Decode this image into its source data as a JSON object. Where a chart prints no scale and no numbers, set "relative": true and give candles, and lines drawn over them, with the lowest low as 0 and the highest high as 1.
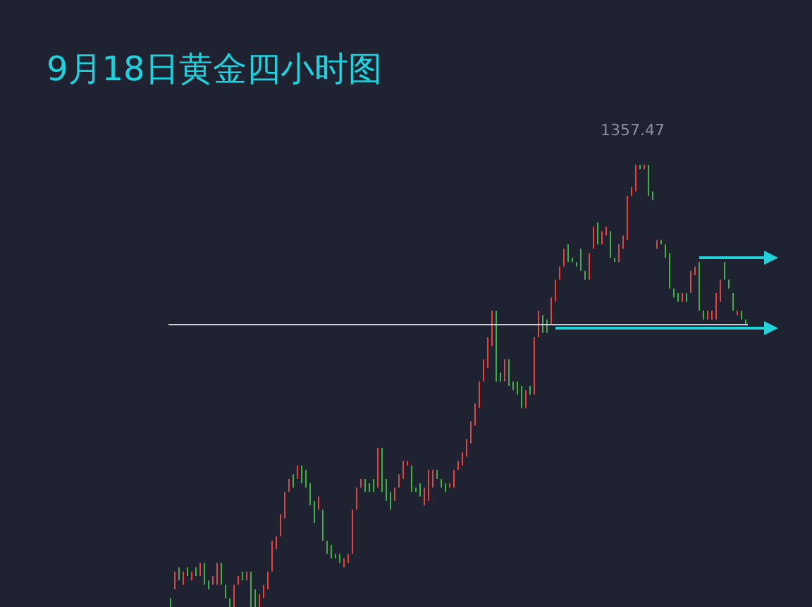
{
  "chart_data": {
    "type": "candlestick",
    "title": "9月18日黄金四小时图",
    "relative": true,
    "tick_labels": false,
    "annotations": [
      {
        "text": "1357.47",
        "y": 1
      }
    ],
    "ref_lines": [
      {
        "axis": "y",
        "value": 0.64,
        "label": null,
        "color": "#c8d0d8",
        "line_style": "solid"
      }
    ],
    "categories": [
      null,
      null,
      null,
      null,
      null,
      null,
      null,
      null,
      null,
      null,
      null,
      null,
      null,
      null,
      null,
      null,
      null,
      null,
      null,
      null,
      null,
      null,
      null,
      null,
      null,
      null,
      null,
      null,
      null,
      null,
      null,
      null,
      null,
      null,
      null,
      null,
      null,
      null,
      null,
      null,
      null,
      null,
      null,
      null,
      null,
      null,
      null,
      null,
      null,
      null,
      null,
      null,
      null,
      null,
      null,
      null,
      null,
      null,
      null,
      null,
      null,
      null,
      null,
      null,
      null,
      null,
      null,
      null,
      null,
      null,
      null,
      null,
      null,
      null,
      null,
      null,
      null,
      null,
      null,
      null,
      null,
      null,
      null,
      null,
      null,
      null,
      null,
      null,
      null,
      null,
      null,
      null,
      null,
      null,
      null,
      null,
      null,
      null,
      null,
      null,
      null,
      null,
      null,
      null,
      null,
      null,
      null,
      null,
      null,
      null,
      null,
      null,
      null,
      null,
      null,
      null,
      null,
      null,
      null,
      null,
      null,
      null,
      null,
      null,
      null,
      null,
      null,
      null,
      null,
      null,
      null,
      null,
      null,
      null,
      null,
      null,
      null
    ],
    "ohlc": [
      [
        0.02,
        0.02,
        0,
        0
      ],
      [
        0.04,
        0.08,
        0.04,
        0.08
      ],
      [
        0.09,
        0.09,
        0.06,
        0.06
      ],
      [
        0.05,
        0.08,
        0.05,
        0.08
      ],
      [
        0.09,
        0.09,
        0.07,
        0.07
      ],
      [
        0.06,
        0.08,
        0.06,
        0.08
      ],
      [
        0.09,
        0.09,
        0.07,
        0.07
      ],
      [
        0.07,
        0.1,
        0.07,
        0.1
      ],
      [
        0.1,
        0.1,
        0.05,
        0.05
      ],
      [
        0.06,
        0.06,
        0.04,
        0.04
      ],
      [
        0.05,
        0.07,
        0.05,
        0.07
      ],
      [
        0.05,
        0.1,
        0.05,
        0.1
      ],
      [
        0.1,
        0.1,
        0.05,
        0.05
      ],
      [
        0.05,
        0.05,
        0.02,
        0.02
      ],
      [
        0.02,
        0.02,
        0,
        0
      ],
      [
        0,
        0.05,
        0,
        0.05
      ],
      [
        0.05,
        0.07,
        0.05,
        0.07
      ],
      [
        0.08,
        0.08,
        0.06,
        0.06
      ],
      [
        0.06,
        0.08,
        0.06,
        0.08
      ],
      [
        0.08,
        0.08,
        0,
        0
      ],
      [
        0.04,
        0.04,
        0,
        0
      ],
      [
        0,
        0.03,
        0,
        0.03
      ],
      [
        0.02,
        0.05,
        0.02,
        0.05
      ],
      [
        0.04,
        0.08,
        0.04,
        0.08
      ],
      [
        0.08,
        0.15,
        0.08,
        0.15
      ],
      [
        0.13,
        0.16,
        0.13,
        0.16
      ],
      [
        0.16,
        0.21,
        0.16,
        0.21
      ],
      [
        0.2,
        0.26,
        0.2,
        0.26
      ],
      [
        0.26,
        0.29,
        0.26,
        0.29
      ],
      [
        0.3,
        0.3,
        0.27,
        0.27
      ],
      [
        0.29,
        0.32,
        0.29,
        0.32
      ],
      [
        0.32,
        0.32,
        0.28,
        0.28
      ],
      [
        0.31,
        0.31,
        0.27,
        0.27
      ],
      [
        0.28,
        0.28,
        0.23,
        0.23
      ],
      [
        0.24,
        0.24,
        0.19,
        0.19
      ],
      [
        0.22,
        0.25,
        0.22,
        0.25
      ],
      [
        0.22,
        0.22,
        0.15,
        0.15
      ],
      [
        0.15,
        0.15,
        0.12,
        0.12
      ],
      [
        0.14,
        0.14,
        0.11,
        0.11
      ],
      [
        0.12,
        0.12,
        0.11,
        0.11
      ],
      [
        0.12,
        0.12,
        0.1,
        0.1
      ],
      [
        0.09,
        0.11,
        0.09,
        0.11
      ],
      [
        0.1,
        0.12,
        0.1,
        0.12
      ],
      [
        0.12,
        0.22,
        0.12,
        0.22
      ],
      [
        0.22,
        0.27,
        0.22,
        0.27
      ],
      [
        0.27,
        0.29,
        0.27,
        0.29
      ],
      [
        0.29,
        0.29,
        0.26,
        0.26
      ],
      [
        0.28,
        0.28,
        0.26,
        0.26
      ],
      [
        0.29,
        0.29,
        0.26,
        0.26
      ],
      [
        0.27,
        0.36,
        0.27,
        0.36
      ],
      [
        0.36,
        0.36,
        0.26,
        0.26
      ],
      [
        0.29,
        0.29,
        0.24,
        0.24
      ],
      [
        0.26,
        0.26,
        0.22,
        0.22
      ],
      [
        0.24,
        0.27,
        0.24,
        0.27
      ],
      [
        0.27,
        0.3,
        0.27,
        0.3
      ],
      [
        0.29,
        0.33,
        0.29,
        0.33
      ],
      [
        0.32,
        0.33,
        0.32,
        0.33
      ],
      [
        0.32,
        0.32,
        0.26,
        0.26
      ],
      [
        0.27,
        0.27,
        0.26,
        0.26
      ],
      [
        0.28,
        0.28,
        0.25,
        0.25
      ],
      [
        0.23,
        0.27,
        0.23,
        0.27
      ],
      [
        0.24,
        0.31,
        0.24,
        0.31
      ],
      [
        0.27,
        0.31,
        0.27,
        0.31
      ],
      [
        0.31,
        0.31,
        0.29,
        0.29
      ],
      [
        0.29,
        0.29,
        0.27,
        0.27
      ],
      [
        0.28,
        0.28,
        0.26,
        0.26
      ],
      [
        0.27,
        0.28,
        0.27,
        0.28
      ],
      [
        0.27,
        0.31,
        0.27,
        0.31
      ],
      [
        0.31,
        0.33,
        0.31,
        0.33
      ],
      [
        0.32,
        0.35,
        0.32,
        0.35
      ],
      [
        0.34,
        0.38,
        0.34,
        0.38
      ],
      [
        0.37,
        0.42,
        0.37,
        0.42
      ],
      [
        0.41,
        0.46,
        0.41,
        0.46
      ],
      [
        0.45,
        0.51,
        0.45,
        0.51
      ],
      [
        0.51,
        0.56,
        0.51,
        0.56
      ],
      [
        0.54,
        0.61,
        0.54,
        0.61
      ],
      [
        0.59,
        0.67,
        0.59,
        0.67
      ],
      [
        0.67,
        0.67,
        0.51,
        0.51
      ],
      [
        0.53,
        0.53,
        0.51,
        0.51
      ],
      [
        0.51,
        0.56,
        0.51,
        0.56
      ],
      [
        0.56,
        0.56,
        0.5,
        0.5
      ],
      [
        0.51,
        0.51,
        0.49,
        0.49
      ],
      [
        0.51,
        0.51,
        0.48,
        0.48
      ],
      [
        0.5,
        0.5,
        0.45,
        0.45
      ],
      [
        0.45,
        0.49,
        0.45,
        0.49
      ],
      [
        0.5,
        0.5,
        0.48,
        0.48
      ],
      [
        0.48,
        0.61,
        0.48,
        0.61
      ],
      [
        0.61,
        0.67,
        0.61,
        0.67
      ],
      [
        0.66,
        0.66,
        0.62,
        0.62
      ],
      [
        0.65,
        0.65,
        0.62,
        0.62
      ],
      [
        0.64,
        0.7,
        0.64,
        0.7
      ],
      [
        0.69,
        0.74,
        0.69,
        0.74
      ],
      [
        0.74,
        0.77,
        0.74,
        0.77
      ],
      [
        0.77,
        0.81,
        0.77,
        0.81
      ],
      [
        0.82,
        0.82,
        0.78,
        0.78
      ],
      [
        0.79,
        0.79,
        0.78,
        0.78
      ],
      [
        0.78,
        0.78,
        0.77,
        0.77
      ],
      [
        0.81,
        0.81,
        0.76,
        0.76
      ],
      [
        0.76,
        0.76,
        0.74,
        0.74
      ],
      [
        0.74,
        0.8,
        0.74,
        0.8
      ],
      [
        0.81,
        0.86,
        0.81,
        0.86
      ],
      [
        0.87,
        0.87,
        0.82,
        0.82
      ],
      [
        0.82,
        0.85,
        0.82,
        0.85
      ],
      [
        0.84,
        0.86,
        0.84,
        0.86
      ],
      [
        0.85,
        0.85,
        0.79,
        0.79
      ],
      [
        0.79,
        0.79,
        0.78,
        0.78
      ],
      [
        0.78,
        0.82,
        0.78,
        0.82
      ],
      [
        0.81,
        0.84,
        0.81,
        0.84
      ],
      [
        0.83,
        0.93,
        0.83,
        0.93
      ],
      [
        0.93,
        0.95,
        0.93,
        0.95
      ],
      [
        0.94,
        1,
        0.94,
        1
      ],
      [
        1,
        1,
        0.99,
        0.99
      ],
      [
        0.99,
        1,
        0.99,
        1
      ],
      [
        1,
        1,
        0.93,
        0.93
      ],
      [
        0.94,
        0.94,
        0.92,
        0.92
      ],
      [
        0.81,
        0.83,
        0.81,
        0.83
      ],
      [
        0.83,
        0.83,
        0.82,
        0.82
      ],
      [
        0.82,
        0.82,
        0.79,
        0.79
      ],
      [
        0.8,
        0.8,
        0.72,
        0.72
      ],
      [
        0.72,
        0.72,
        0.7,
        0.7
      ],
      [
        0.71,
        0.71,
        0.69,
        0.69
      ],
      [
        0.69,
        0.71,
        0.69,
        0.71
      ],
      [
        0.71,
        0.71,
        0.69,
        0.69
      ],
      [
        0.71,
        0.76,
        0.71,
        0.76
      ],
      [
        0.75,
        0.77,
        0.75,
        0.77
      ],
      [
        0.78,
        0.78,
        0.67,
        0.67
      ],
      [
        0.67,
        0.67,
        0.65,
        0.65
      ],
      [
        0.65,
        0.67,
        0.65,
        0.67
      ],
      [
        0.65,
        0.67,
        0.65,
        0.67
      ],
      [
        0.65,
        0.71,
        0.65,
        0.71
      ],
      [
        0.69,
        0.74,
        0.69,
        0.74
      ],
      [
        0.78,
        0.78,
        0.74,
        0.74
      ],
      [
        0.74,
        0.74,
        0.72,
        0.72
      ],
      [
        0.71,
        0.71,
        0.67,
        0.67
      ],
      [
        0.66,
        0.67,
        0.66,
        0.67
      ],
      [
        0.67,
        0.67,
        0.65,
        0.65
      ],
      [
        0.65,
        0.65,
        0.64,
        0.64
      ]
    ],
    "colors": [
      "#3cb043",
      "#e8413f",
      "#3cb043",
      "#e8413f",
      "#3cb043",
      "#e8413f",
      "#3cb043",
      "#e8413f",
      "#3cb043",
      "#3cb043",
      "#e8413f",
      "#e8413f",
      "#3cb043",
      "#3cb043",
      "#3cb043",
      "#e8413f",
      "#e8413f",
      "#3cb043",
      "#e8413f",
      "#3cb043",
      "#3cb043",
      "#e8413f",
      "#e8413f",
      "#e8413f",
      "#e8413f",
      "#e8413f",
      "#e8413f",
      "#e8413f",
      "#e8413f",
      "#3cb043",
      "#e8413f",
      "#3cb043",
      "#3cb043",
      "#3cb043",
      "#3cb043",
      "#e8413f",
      "#3cb043",
      "#3cb043",
      "#3cb043",
      "#3cb043",
      "#3cb043",
      "#e8413f",
      "#e8413f",
      "#e8413f",
      "#e8413f",
      "#e8413f",
      "#3cb043",
      "#3cb043",
      "#3cb043",
      "#e8413f",
      "#3cb043",
      "#3cb043",
      "#3cb043",
      "#e8413f",
      "#e8413f",
      "#e8413f",
      "#e8413f",
      "#3cb043",
      "#3cb043",
      "#3cb043",
      "#e8413f",
      "#e8413f",
      "#e8413f",
      "#3cb043",
      "#3cb043",
      "#3cb043",
      "#e8413f",
      "#e8413f",
      "#e8413f",
      "#e8413f",
      "#e8413f",
      "#e8413f",
      "#e8413f",
      "#e8413f",
      "#e8413f",
      "#e8413f",
      "#e8413f",
      "#3cb043",
      "#3cb043",
      "#e8413f",
      "#3cb043",
      "#3cb043",
      "#3cb043",
      "#3cb043",
      "#e8413f",
      "#3cb043",
      "#e8413f",
      "#e8413f",
      "#3cb043",
      "#3cb043",
      "#e8413f",
      "#e8413f",
      "#e8413f",
      "#e8413f",
      "#3cb043",
      "#3cb043",
      "#3cb043",
      "#3cb043",
      "#3cb043",
      "#e8413f",
      "#e8413f",
      "#3cb043",
      "#e8413f",
      "#e8413f",
      "#3cb043",
      "#3cb043",
      "#e8413f",
      "#e8413f",
      "#e8413f",
      "#e8413f",
      "#e8413f",
      "#3cb043",
      "#e8413f",
      "#3cb043",
      "#3cb043",
      "#e8413f",
      "#3cb043",
      "#3cb043",
      "#3cb043",
      "#3cb043",
      "#3cb043",
      "#e8413f",
      "#3cb043",
      "#e8413f",
      "#e8413f",
      "#3cb043",
      "#3cb043",
      "#e8413f",
      "#e8413f",
      "#e8413f",
      "#e8413f",
      "#3cb043",
      "#3cb043",
      "#3cb043",
      "#e8413f",
      "#3cb043",
      "#3cb043"
    ]
  }
}
